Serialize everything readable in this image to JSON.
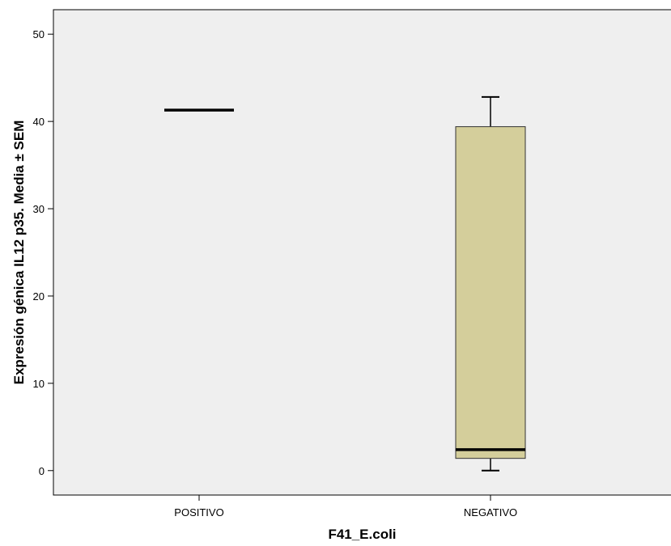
{
  "chart_data": {
    "type": "boxplot",
    "title": "",
    "xlabel": "F41_E.coli",
    "ylabel": "Expresión génica IL12 p35. Media ± SEM",
    "categories": [
      "POSITIVO",
      "NEGATIVO"
    ],
    "ylim": [
      -2.8,
      52.8
    ],
    "yticks": [
      0,
      10,
      20,
      30,
      40,
      50
    ],
    "ytick_labels": [
      "0",
      "10",
      "20",
      "30",
      "40",
      "50"
    ],
    "boxes": [
      {
        "category": "POSITIVO",
        "whisker_low": 41.3,
        "q1": 41.3,
        "median": 41.3,
        "q3": 41.3,
        "whisker_high": 41.3
      },
      {
        "category": "NEGATIVO",
        "whisker_low": 0.0,
        "q1": 1.4,
        "median": 2.4,
        "q3": 39.4,
        "whisker_high": 42.8
      }
    ],
    "grid": false,
    "colors": {
      "plot_background": "#efefef",
      "box_fill": "#d4ce9b",
      "box_stroke": "#333333",
      "median": "#000000"
    }
  }
}
